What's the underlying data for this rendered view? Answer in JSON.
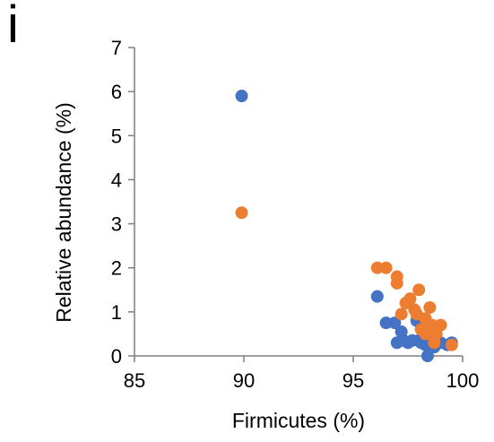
{
  "panel_label": "i",
  "chart_data": {
    "type": "scatter",
    "title": "",
    "xlabel": "Firmicutes (%)",
    "ylabel": "Relative abundance (%)",
    "xlim": [
      85,
      100
    ],
    "ylim": [
      0,
      7
    ],
    "x_ticks": [
      "85",
      "90",
      "95",
      "100"
    ],
    "y_ticks": [
      "0",
      "1",
      "2",
      "3",
      "4",
      "5",
      "6",
      "7"
    ],
    "grid": false,
    "legend": "none",
    "series": [
      {
        "color": "#4472C4",
        "points": [
          [
            89.9,
            5.9
          ],
          [
            96.1,
            1.35
          ],
          [
            96.5,
            0.75
          ],
          [
            96.9,
            0.75
          ],
          [
            97.0,
            0.3
          ],
          [
            97.2,
            0.55
          ],
          [
            97.3,
            0.35
          ],
          [
            97.5,
            0.3
          ],
          [
            97.7,
            0.35
          ],
          [
            97.9,
            0.8
          ],
          [
            98.0,
            0.35
          ],
          [
            98.1,
            0.3
          ],
          [
            98.2,
            0.65
          ],
          [
            98.3,
            0.25
          ],
          [
            98.4,
            0.0
          ],
          [
            98.6,
            0.4
          ],
          [
            98.7,
            0.2
          ],
          [
            98.8,
            0.35
          ],
          [
            99.0,
            0.3
          ],
          [
            99.3,
            0.25
          ],
          [
            99.5,
            0.3
          ]
        ]
      },
      {
        "color": "#ED7D31",
        "points": [
          [
            89.9,
            3.25
          ],
          [
            96.1,
            2.0
          ],
          [
            96.5,
            2.0
          ],
          [
            97.0,
            1.8
          ],
          [
            97.0,
            1.65
          ],
          [
            97.2,
            0.95
          ],
          [
            97.4,
            1.2
          ],
          [
            97.6,
            1.3
          ],
          [
            97.8,
            1.05
          ],
          [
            98.0,
            1.5
          ],
          [
            97.9,
            0.95
          ],
          [
            98.1,
            0.6
          ],
          [
            98.3,
            0.85
          ],
          [
            98.3,
            0.5
          ],
          [
            98.5,
            1.1
          ],
          [
            98.6,
            0.7
          ],
          [
            98.7,
            0.3
          ],
          [
            98.8,
            0.5
          ],
          [
            99.0,
            0.7
          ],
          [
            99.5,
            0.25
          ]
        ]
      }
    ]
  }
}
